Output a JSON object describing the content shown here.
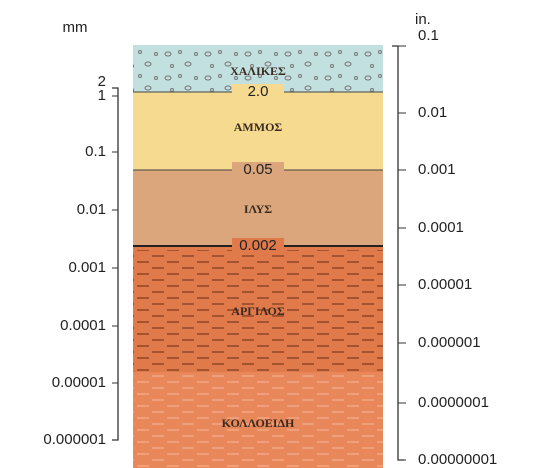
{
  "left_axis": {
    "unit": "mm",
    "ticks": [
      "2",
      "1",
      "0.1",
      "0.01",
      "0.001",
      "0.0001",
      "0.00001",
      "0.000001"
    ]
  },
  "right_axis": {
    "unit": "in.",
    "ticks": [
      "0.1",
      "0.01",
      "0.001",
      "0.0001",
      "0.00001",
      "0.000001",
      "0.0000001",
      "0.00000001"
    ]
  },
  "layers": [
    {
      "name": "ΧΑΛΙΚΕΣ"
    },
    {
      "name": "ΑΜΜΟΣ"
    },
    {
      "name": "ΙΛΥΣ"
    },
    {
      "name": "ΑΡΓΙΛΟΣ"
    },
    {
      "name": "ΚΟΛΛΟΕΙΔΗ"
    }
  ],
  "boundaries": [
    "2.0",
    "0.05",
    "0.002"
  ]
}
